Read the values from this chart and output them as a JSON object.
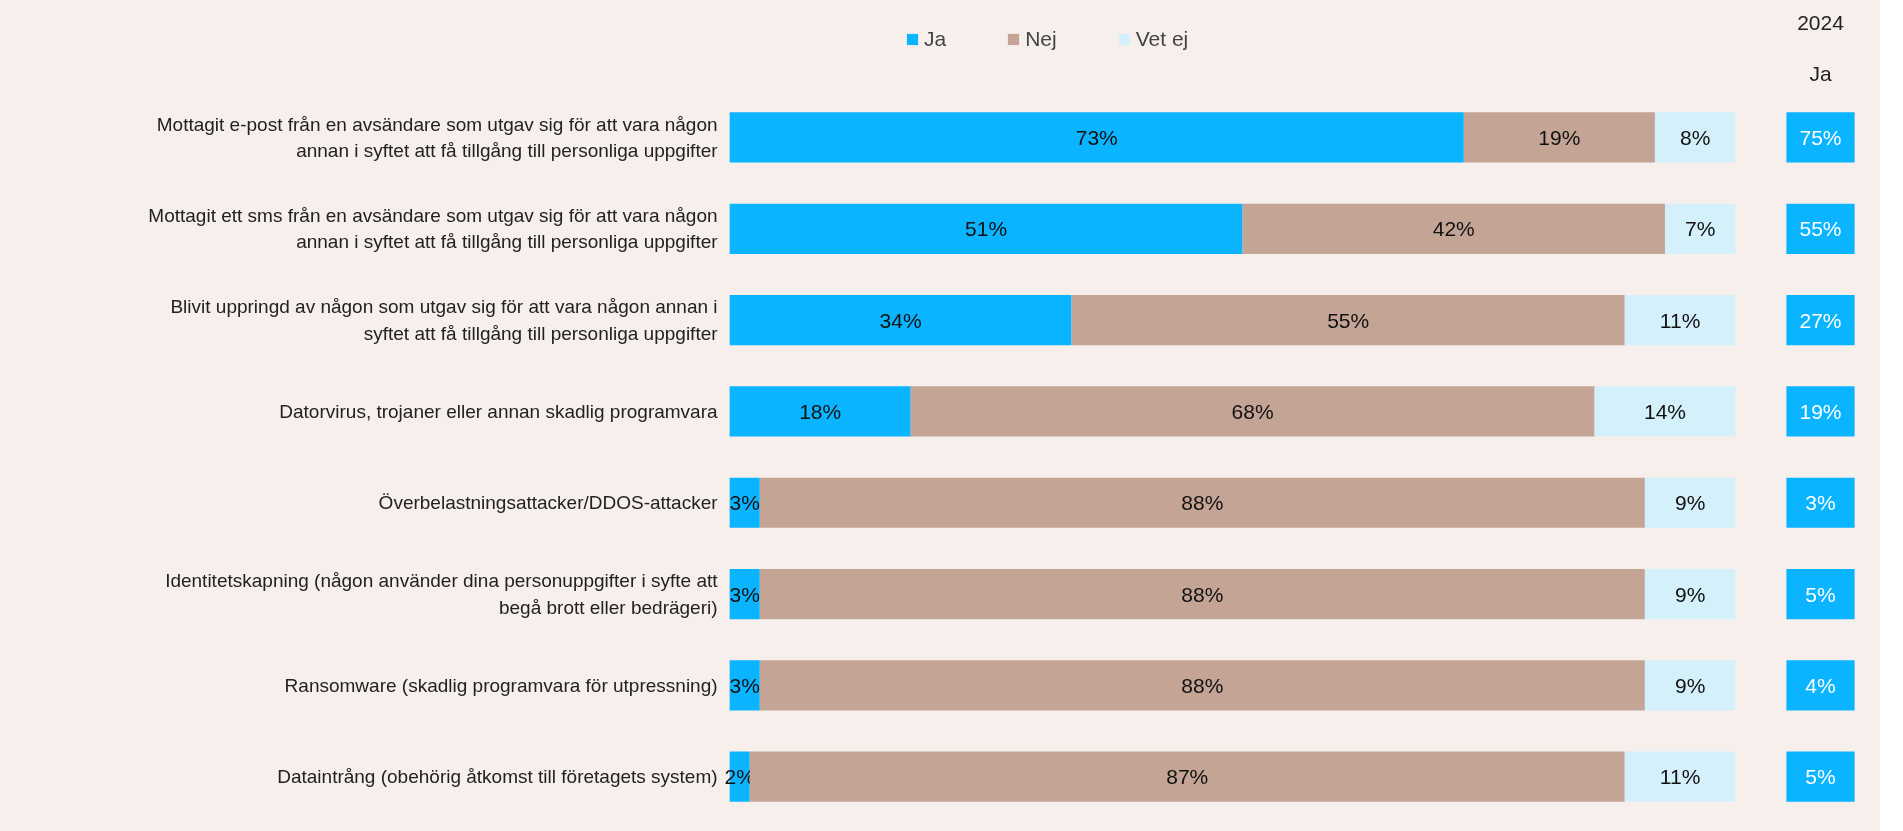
{
  "chart_data": [
    {
      "type": "bar",
      "orientation": "horizontal",
      "stacked": true,
      "legend": "top",
      "grid": false,
      "categories": [
        "Mottagit e-post från en avsändare som utgav sig för att vara någon annan i syftet att få tillgång till personliga uppgifter",
        "Mottagit ett sms från en avsändare som utgav sig för att vara någon annan i syftet att få tillgång till personliga uppgifter",
        "Blivit uppringd av någon som utgav sig för att vara någon annan i syftet att få tillgång till personliga uppgifter",
        "Datorvirus, trojaner eller annan skadlig programvara",
        "Överbelastningsattacker/DDOS-attacker",
        "Identitetskapning (någon använder dina personuppgifter i syfte att begå brott eller bedrägeri)",
        "Ransomware (skadlig programvara för utpressning)",
        "Dataintrång (obehörig åtkomst till företagets system)"
      ],
      "series": [
        {
          "name": "Ja",
          "color": "#0bb4ff",
          "values": [
            73,
            51,
            34,
            18,
            3,
            3,
            3,
            2
          ],
          "value_labels": [
            "73%",
            "51%",
            "34%",
            "18%",
            "3%",
            "3%",
            "3%",
            "2%"
          ]
        },
        {
          "name": "Nej",
          "color": "#c4a595",
          "values": [
            19,
            42,
            55,
            68,
            88,
            88,
            88,
            87
          ],
          "value_labels": [
            "19%",
            "42%",
            "55%",
            "68%",
            "88%",
            "88%",
            "88%",
            "87%"
          ]
        },
        {
          "name": "Vet ej",
          "color": "#d4f0fb",
          "values": [
            8,
            7,
            11,
            14,
            9,
            9,
            9,
            11
          ],
          "value_labels": [
            "8%",
            "7%",
            "11%",
            "14%",
            "9%",
            "9%",
            "9%",
            "11%"
          ]
        }
      ]
    },
    {
      "type": "other",
      "title": "2024",
      "subtitle": "Ja",
      "color": "#0bb4ff",
      "value_labels": [
        "75%",
        "55%",
        "27%",
        "19%",
        "3%",
        "5%",
        "4%",
        "5%"
      ]
    }
  ]
}
